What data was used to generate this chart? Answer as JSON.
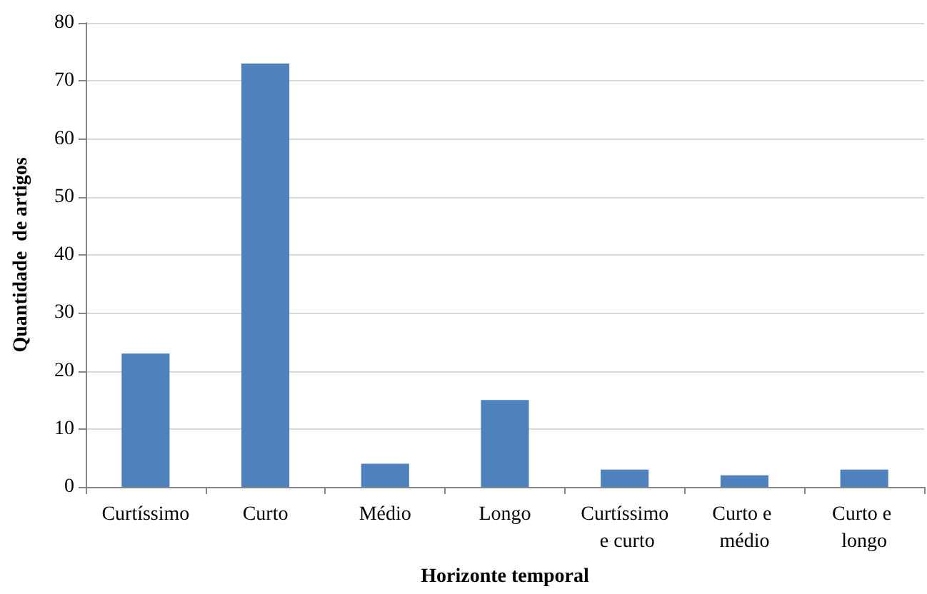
{
  "chart_data": {
    "type": "bar",
    "xlabel": "Horizonte temporal",
    "ylabel": "Quantidade  de artigos",
    "categories": [
      "Curtíssimo",
      "Curto",
      "Médio",
      "Longo",
      "Curtíssimo e curto",
      "Curto e médio",
      "Curto e longo"
    ],
    "values": [
      23,
      73,
      4,
      15,
      3,
      2,
      3
    ],
    "color": "#4f81bd",
    "ylim": [
      0,
      80
    ],
    "yticks": [
      0,
      10,
      20,
      30,
      40,
      50,
      60,
      70,
      80
    ],
    "grid": "y"
  }
}
